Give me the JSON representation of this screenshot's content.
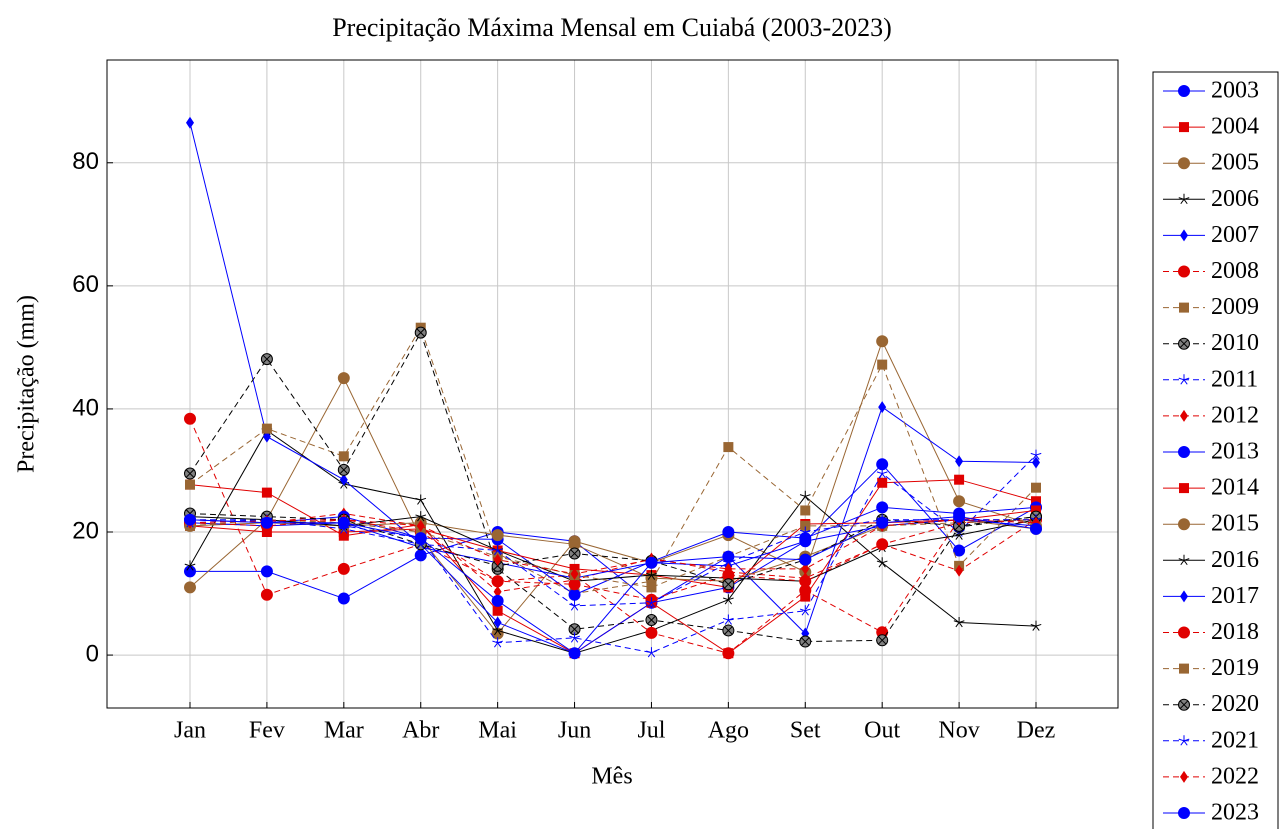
{
  "chart_data": {
    "type": "line",
    "title": "Precipitação Máxima Mensal em Cuiabá (2003-2023)",
    "xlabel": "Mês",
    "ylabel": "Precipitação (mm)",
    "categories": [
      "Jan",
      "Fev",
      "Mar",
      "Abr",
      "Mai",
      "Jun",
      "Jul",
      "Ago",
      "Set",
      "Out",
      "Nov",
      "Dez"
    ],
    "ylim": [
      -8.6,
      96.7
    ],
    "yticks": [
      0,
      20,
      40,
      60,
      80
    ],
    "grid": true,
    "legend": "outside right",
    "series": [
      {
        "name": "2003",
        "color": "#0000ff",
        "marker": "circle",
        "dashed": false,
        "values": [
          13.6,
          13.6,
          9.2,
          16.2,
          20,
          18.5,
          8.5,
          11,
          18.5,
          31,
          17,
          24
        ]
      },
      {
        "name": "2004",
        "color": "#e00000",
        "marker": "square",
        "dashed": false,
        "values": [
          27.7,
          26.4,
          19.4,
          21.2,
          7.2,
          0.3,
          8.5,
          0.3,
          9.5,
          28,
          28.5,
          25
        ]
      },
      {
        "name": "2005",
        "color": "#996633",
        "marker": "circle",
        "dashed": false,
        "values": [
          11,
          22,
          45,
          19,
          3.5,
          18.5,
          15,
          19.5,
          13.5,
          51,
          25,
          21
        ]
      },
      {
        "name": "2006",
        "color": "#000000",
        "marker": "star",
        "dashed": false,
        "values": [
          14.5,
          36.5,
          27.8,
          25.2,
          4,
          0.3,
          4,
          9,
          25.8,
          15,
          5.3,
          4.7
        ]
      },
      {
        "name": "2007",
        "color": "#0000ff",
        "marker": "diamond",
        "dashed": false,
        "values": [
          86.5,
          35.5,
          28.5,
          18,
          5.3,
          0.3,
          8.5,
          16,
          3.5,
          40.3,
          31.5,
          31.3
        ]
      },
      {
        "name": "2008",
        "color": "#e00000",
        "marker": "circle",
        "dashed": true,
        "values": [
          38.4,
          9.8,
          14,
          18,
          12,
          13,
          3.6,
          0.3,
          10.5,
          3.7,
          22,
          22
        ]
      },
      {
        "name": "2009",
        "color": "#996633",
        "marker": "square",
        "dashed": true,
        "values": [
          27.7,
          36.8,
          32.3,
          53.2,
          16.5,
          10,
          12,
          33.8,
          23.5,
          47.2,
          14.5,
          27.2
        ]
      },
      {
        "name": "2010",
        "color": "#000000",
        "marker": "otimes",
        "dashed": true,
        "values": [
          29.5,
          48.1,
          30.1,
          52.4,
          14,
          4.2,
          5.7,
          4,
          2.2,
          2.4,
          20.8,
          22.5
        ]
      },
      {
        "name": "2011",
        "color": "#0000ff",
        "marker": "star",
        "dashed": true,
        "values": [
          22,
          22,
          21,
          19,
          2,
          2.8,
          0.4,
          5.7,
          7.2,
          29.5,
          20,
          32.5
        ]
      },
      {
        "name": "2012",
        "color": "#e00000",
        "marker": "diamond",
        "dashed": true,
        "values": [
          22,
          21.5,
          23,
          21,
          10.3,
          12.2,
          15.7,
          13.5,
          12.5,
          18,
          13.7,
          22
        ]
      },
      {
        "name": "2013",
        "color": "#0000ff",
        "marker": "circle",
        "dashed": false,
        "values": [
          22,
          21.5,
          22.5,
          19,
          18.8,
          9.8,
          15.2,
          20,
          19,
          24,
          23,
          24
        ]
      },
      {
        "name": "2014",
        "color": "#e00000",
        "marker": "square",
        "dashed": false,
        "values": [
          21,
          20,
          20,
          20.5,
          17,
          14,
          13,
          11,
          21.3,
          21.5,
          22,
          23.5
        ]
      },
      {
        "name": "2015",
        "color": "#996633",
        "marker": "circle",
        "dashed": false,
        "values": [
          21,
          21.5,
          21,
          21.5,
          19.5,
          18,
          12.5,
          12,
          16,
          21,
          22,
          20.5
        ]
      },
      {
        "name": "2016",
        "color": "#000000",
        "marker": "star",
        "dashed": false,
        "values": [
          22.5,
          22,
          21,
          22.5,
          17,
          12,
          13,
          12.5,
          12,
          17.5,
          19.5,
          22
        ]
      },
      {
        "name": "2017",
        "color": "#0000ff",
        "marker": "diamond",
        "dashed": false,
        "values": [
          21.5,
          21,
          21.5,
          17.5,
          15,
          12.5,
          15,
          14.5,
          18.5,
          21,
          22,
          21
        ]
      },
      {
        "name": "2018",
        "color": "#e00000",
        "marker": "circle",
        "dashed": true,
        "values": [
          21.5,
          21,
          22,
          20,
          12,
          11.5,
          9,
          13,
          12,
          18,
          21.5,
          22
        ]
      },
      {
        "name": "2019",
        "color": "#996633",
        "marker": "square",
        "dashed": true,
        "values": [
          21,
          22,
          21.5,
          20,
          16,
          13,
          11,
          16,
          21,
          21,
          21.5,
          22
        ]
      },
      {
        "name": "2020",
        "color": "#000000",
        "marker": "otimes",
        "dashed": true,
        "values": [
          23,
          22.5,
          22,
          18,
          14.5,
          16.5,
          15.3,
          11.5,
          15.5,
          22,
          21,
          22.5
        ]
      },
      {
        "name": "2021",
        "color": "#0000ff",
        "marker": "star",
        "dashed": true,
        "values": [
          21.5,
          22,
          20.5,
          18,
          17,
          8,
          8.5,
          15,
          20,
          22,
          22,
          22
        ]
      },
      {
        "name": "2022",
        "color": "#e00000",
        "marker": "diamond",
        "dashed": true,
        "values": [
          21.5,
          21.8,
          22,
          21,
          15.5,
          13.2,
          15.5,
          14,
          14,
          21,
          22,
          21.5
        ]
      },
      {
        "name": "2023",
        "color": "#0000ff",
        "marker": "circle",
        "dashed": false,
        "values": [
          22,
          21.5,
          21.5,
          19,
          8.8,
          0.3,
          15,
          16,
          15.5,
          21.5,
          22.5,
          20.5
        ]
      }
    ]
  }
}
